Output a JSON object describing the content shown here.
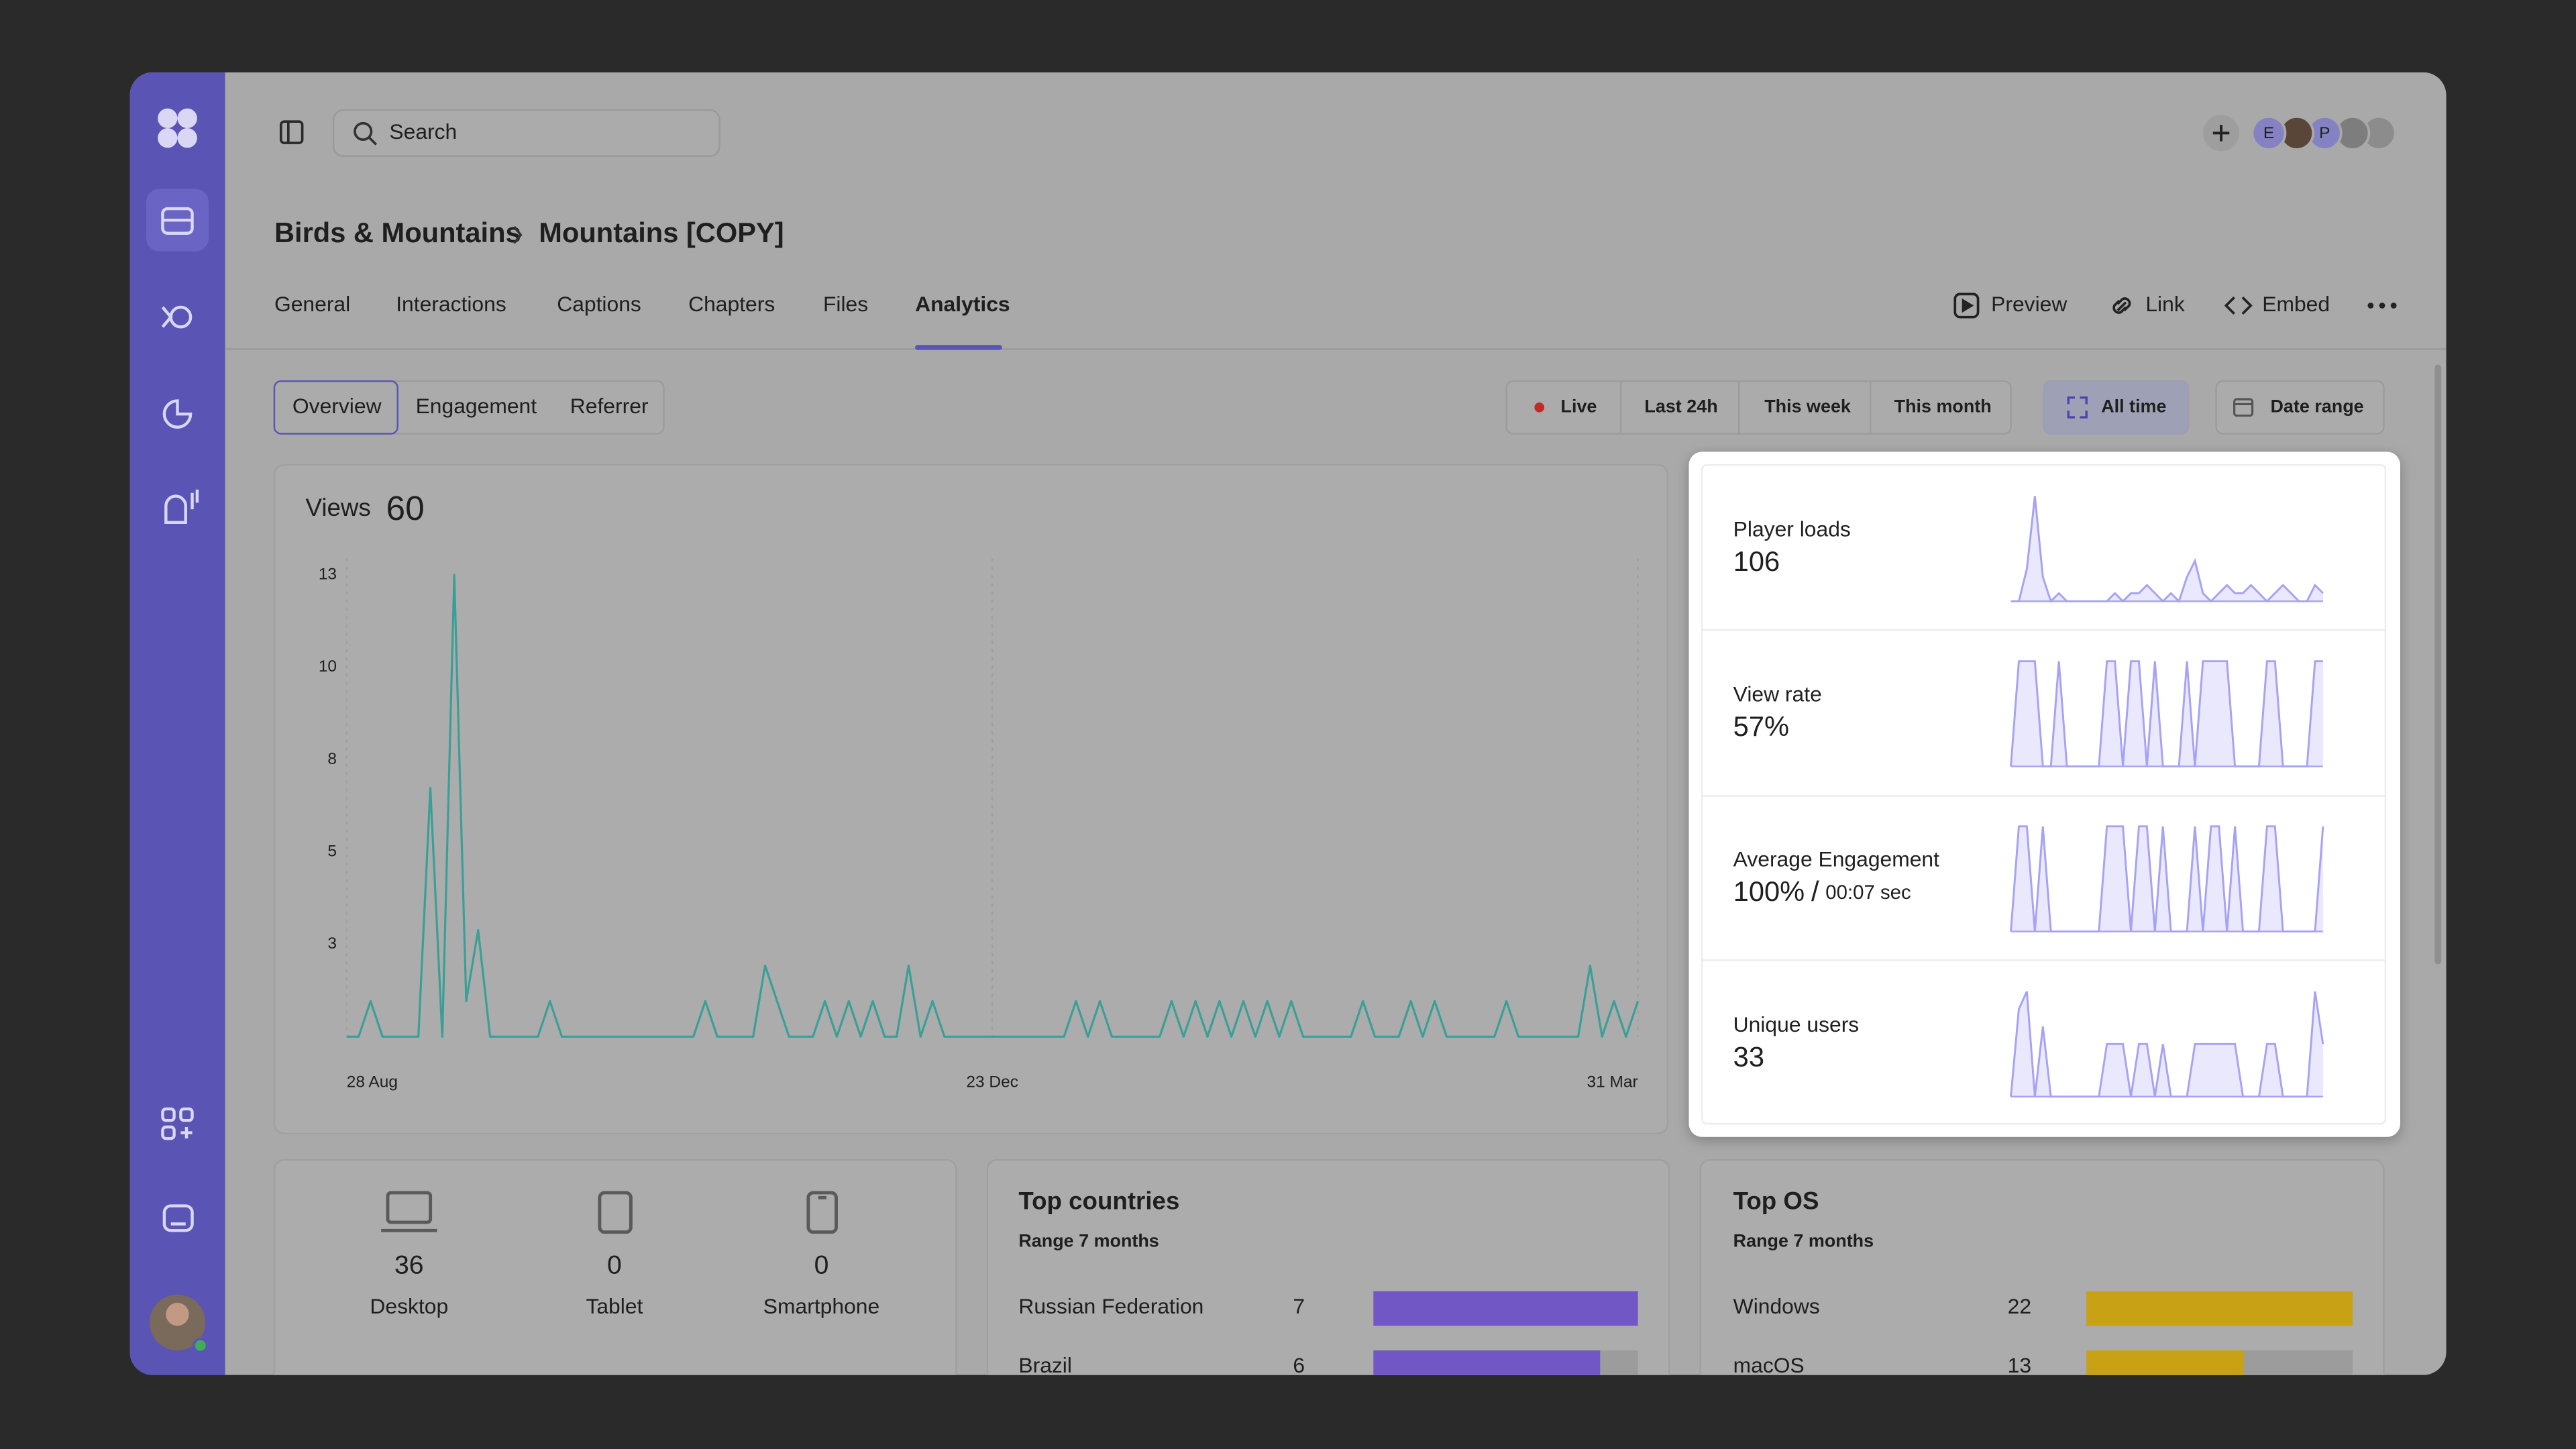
{
  "search_placeholder": "Search",
  "avatars": [
    "E",
    "P"
  ],
  "breadcrumb": [
    "Birds & Mountains",
    "Mountains [COPY]"
  ],
  "tabs": [
    "General",
    "Interactions",
    "Captions",
    "Chapters",
    "Files",
    "Analytics"
  ],
  "actions": [
    "Preview",
    "Link",
    "Embed"
  ],
  "subtabs": [
    "Overview",
    "Engagement",
    "Referrer"
  ],
  "time_filters": [
    "Live",
    "Last 24h",
    "This week",
    "This month",
    "All time",
    "Date range"
  ],
  "chart_data": {
    "type": "line",
    "title": "Views",
    "total": 60,
    "color": "#3a9f96",
    "categories": [
      "28 Aug",
      null,
      null,
      null,
      null,
      null,
      null,
      null,
      null,
      null,
      null,
      null,
      null,
      null,
      null,
      null,
      null,
      null,
      null,
      null,
      null,
      null,
      null,
      null,
      null,
      null,
      null,
      null,
      null,
      null,
      null,
      null,
      null,
      null,
      null,
      null,
      null,
      null,
      null,
      null,
      null,
      null,
      null,
      null,
      null,
      null,
      null,
      null,
      null,
      null,
      null,
      null,
      null,
      null,
      "23 Dec",
      null,
      null,
      null,
      null,
      null,
      null,
      null,
      null,
      null,
      null,
      null,
      null,
      null,
      null,
      null,
      null,
      null,
      null,
      null,
      null,
      null,
      null,
      null,
      null,
      null,
      null,
      null,
      null,
      null,
      null,
      null,
      null,
      null,
      null,
      null,
      null,
      null,
      null,
      null,
      null,
      null,
      null,
      null,
      null,
      null,
      null,
      null,
      null,
      null,
      null,
      null,
      null,
      null,
      "31 Mar"
    ],
    "values": [
      0,
      0,
      1,
      0,
      0,
      0,
      0,
      7,
      0,
      13,
      1,
      3,
      0,
      0,
      0,
      0,
      0,
      1,
      0,
      0,
      0,
      0,
      0,
      0,
      0,
      0,
      0,
      0,
      0,
      0,
      1,
      0,
      0,
      0,
      0,
      2,
      1,
      0,
      0,
      0,
      1,
      0,
      1,
      0,
      1,
      0,
      0,
      2,
      0,
      1,
      0,
      0,
      0,
      0,
      0,
      0,
      0,
      0,
      0,
      0,
      0,
      1,
      0,
      1,
      0,
      0,
      0,
      0,
      0,
      1,
      0,
      1,
      0,
      1,
      0,
      1,
      0,
      1,
      0,
      1,
      0,
      0,
      0,
      0,
      0,
      1,
      0,
      0,
      0,
      1,
      0,
      1,
      0,
      0,
      0,
      0,
      0,
      1,
      0,
      0,
      0,
      0,
      0,
      0,
      2,
      0,
      1,
      0,
      1
    ],
    "ylim": [
      0,
      13
    ],
    "yticks": [
      {
        "value": 2.6,
        "label": "3"
      },
      {
        "value": 5.2,
        "label": "5"
      },
      {
        "value": 7.8,
        "label": "8"
      },
      {
        "value": 10.4,
        "label": "10"
      },
      13
    ]
  },
  "metrics": [
    {
      "label": "Player loads",
      "value": "106",
      "color": "#a7a2f3",
      "series": [
        0,
        0,
        4,
        13,
        3,
        0,
        1,
        0,
        0,
        0,
        0,
        0,
        0,
        1,
        0,
        1,
        1,
        2,
        1,
        0,
        1,
        0,
        3,
        5,
        1,
        0,
        1,
        2,
        1,
        1,
        2,
        1,
        0,
        1,
        2,
        1,
        0,
        0,
        2,
        1
      ]
    },
    {
      "label": "View rate",
      "value": "57%",
      "color": "#a7a2f3",
      "series": [
        0,
        100,
        100,
        100,
        0,
        0,
        100,
        0,
        0,
        0,
        0,
        0,
        100,
        100,
        0,
        100,
        100,
        0,
        100,
        0,
        0,
        0,
        100,
        0,
        100,
        100,
        100,
        100,
        0,
        0,
        0,
        0,
        100,
        100,
        0,
        0,
        0,
        0,
        100,
        100
      ]
    },
    {
      "label": "Average Engagement",
      "value": "100%",
      "separator": "/",
      "secondary": "00:07 sec",
      "color": "#a7a2f3",
      "series": [
        0,
        100,
        100,
        0,
        100,
        0,
        0,
        0,
        0,
        0,
        0,
        0,
        100,
        100,
        100,
        0,
        100,
        100,
        0,
        100,
        0,
        0,
        0,
        100,
        0,
        100,
        100,
        0,
        100,
        0,
        0,
        0,
        100,
        100,
        0,
        0,
        0,
        0,
        0,
        100
      ]
    },
    {
      "label": "Unique users",
      "value": "33",
      "color": "#a7a2f3",
      "series": [
        0,
        5,
        6,
        0,
        4,
        0,
        0,
        0,
        0,
        0,
        0,
        0,
        3,
        3,
        3,
        0,
        3,
        3,
        0,
        3,
        0,
        0,
        0,
        3,
        3,
        3,
        3,
        3,
        3,
        0,
        0,
        0,
        3,
        3,
        0,
        0,
        0,
        0,
        6,
        3
      ]
    }
  ],
  "devices": [
    {
      "count": 36,
      "label": "Desktop"
    },
    {
      "count": 0,
      "label": "Tablet"
    },
    {
      "count": 0,
      "label": "Smartphone"
    }
  ],
  "top_countries": {
    "title": "Top countries",
    "subtitle": "Range 7 months",
    "color": "#7157c6",
    "rows": [
      {
        "name": "Russian Federation",
        "value": 7
      },
      {
        "name": "Brazil",
        "value": 6
      }
    ]
  },
  "top_os": {
    "title": "Top OS",
    "subtitle": "Range 7 months",
    "color": "#c8a114",
    "rows": [
      {
        "name": "Windows",
        "value": 22
      },
      {
        "name": "macOS",
        "value": 13
      }
    ]
  }
}
